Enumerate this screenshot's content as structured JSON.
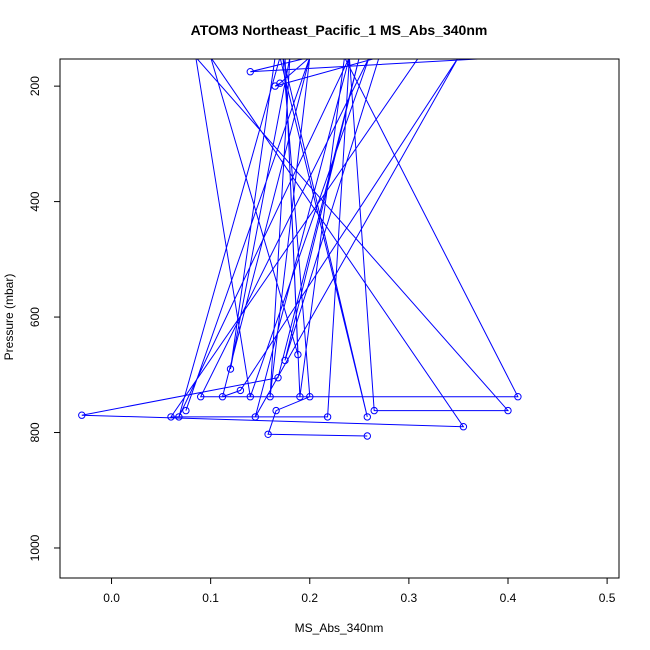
{
  "chart_data": {
    "type": "scatter",
    "title": "ATOM3 Northeast_Pacific_1 MS_Abs_340nm",
    "xlabel": "MS_Abs_340nm",
    "ylabel": "Pressure (mbar)",
    "xlim": [
      -0.052,
      0.512
    ],
    "ylim": [
      1052,
      153
    ],
    "y_inverted": true,
    "grid": false,
    "legend": "none",
    "line_color": "#0000ff",
    "x_ticks": [
      0.0,
      0.1,
      0.2,
      0.3,
      0.4,
      0.5
    ],
    "x_tick_labels": [
      "0.0",
      "0.1",
      "0.2",
      "0.3",
      "0.4",
      "0.5"
    ],
    "y_ticks": [
      200,
      400,
      600,
      800,
      1000
    ],
    "y_tick_labels": [
      "200",
      "400",
      "600",
      "800",
      "1000"
    ],
    "series": [
      {
        "x": [
          0.4,
          0.14,
          0.2,
          0.17,
          0.165,
          0.27,
          0.175,
          0.25,
          0.168,
          -0.03,
          0.355,
          0.1,
          0.188,
          0.175,
          0.19,
          0.235,
          0.41,
          0.09,
          0.26,
          0.14,
          0.085,
          0.4,
          0.265,
          0.24,
          0.145,
          0.35,
          0.13,
          0.112,
          0.2,
          0.075,
          0.2,
          0.16,
          0.18,
          0.12,
          0.165,
          0.31,
          0.06,
          0.218,
          0.24,
          0.068,
          0.17,
          0.258,
          0.173,
          0.2,
          0.166,
          0.158,
          0.258
        ],
        "y": [
          150,
          175,
          150,
          195,
          200,
          150,
          675,
          150,
          705,
          770,
          790,
          150,
          665,
          150,
          738,
          150,
          738,
          738,
          150,
          738,
          150,
          762,
          762,
          150,
          773,
          150,
          727,
          738,
          150,
          762,
          150,
          738,
          150,
          690,
          150,
          150,
          773,
          773,
          150,
          773,
          150,
          773,
          150,
          738,
          762,
          803,
          806
        ]
      }
    ]
  }
}
